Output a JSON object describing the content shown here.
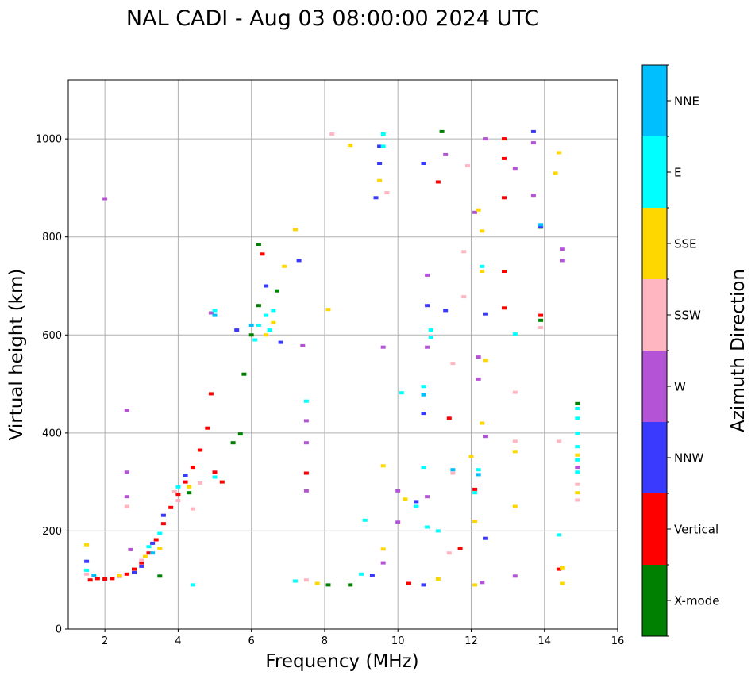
{
  "chart_data": {
    "type": "scatter",
    "title": "NAL CADI - Aug 03 08:00:00 2024 UTC",
    "xlabel": "Frequency (MHz)",
    "ylabel": "Virtual height (km)",
    "xlim": [
      1,
      16
    ],
    "ylim": [
      0,
      1120
    ],
    "xticks": [
      2,
      4,
      6,
      8,
      10,
      12,
      14,
      16
    ],
    "yticks": [
      0,
      200,
      400,
      600,
      800,
      1000
    ],
    "grid": true,
    "colorbar": {
      "label": "Azimuth Direction",
      "categories": [
        {
          "name": "X-mode",
          "color": "#008000"
        },
        {
          "name": "Vertical",
          "color": "#ff0000"
        },
        {
          "name": "NNW",
          "color": "#3a3aff"
        },
        {
          "name": "W",
          "color": "#b453d6"
        },
        {
          "name": "SSW",
          "color": "#ffb6c1"
        },
        {
          "name": "SSE",
          "color": "#ffd700"
        },
        {
          "name": "E",
          "color": "#00ffff"
        },
        {
          "name": "NNE",
          "color": "#00bfff"
        }
      ]
    },
    "series": [
      {
        "name": "Vertical",
        "points": [
          [
            1.6,
            100
          ],
          [
            1.8,
            103
          ],
          [
            2.0,
            102
          ],
          [
            2.2,
            103
          ],
          [
            2.4,
            108
          ],
          [
            2.6,
            112
          ],
          [
            2.8,
            122
          ],
          [
            3.0,
            135
          ],
          [
            3.2,
            155
          ],
          [
            3.4,
            182
          ],
          [
            3.6,
            215
          ],
          [
            3.8,
            248
          ],
          [
            4.0,
            275
          ],
          [
            4.2,
            300
          ],
          [
            4.4,
            330
          ],
          [
            4.6,
            365
          ],
          [
            4.8,
            410
          ],
          [
            4.9,
            480
          ],
          [
            5.0,
            320
          ],
          [
            6.3,
            765
          ],
          [
            12.9,
            1000
          ],
          [
            12.9,
            960
          ],
          [
            12.9,
            880
          ],
          [
            12.9,
            730
          ],
          [
            12.9,
            655
          ],
          [
            11.1,
            912
          ],
          [
            11.4,
            430
          ],
          [
            11.7,
            165
          ],
          [
            10.3,
            93
          ],
          [
            14.4,
            122
          ],
          [
            7.5,
            318
          ],
          [
            13.9,
            640
          ],
          [
            12.1,
            285
          ],
          [
            5.2,
            300
          ]
        ]
      },
      {
        "name": "X-mode",
        "points": [
          [
            3.5,
            108
          ],
          [
            5.5,
            380
          ],
          [
            5.8,
            520
          ],
          [
            6.0,
            600
          ],
          [
            6.2,
            660
          ],
          [
            6.2,
            785
          ],
          [
            6.7,
            690
          ],
          [
            8.1,
            90
          ],
          [
            8.7,
            90
          ],
          [
            13.9,
            820
          ],
          [
            13.9,
            630
          ],
          [
            11.2,
            1015
          ],
          [
            14.9,
            460
          ],
          [
            4.3,
            278
          ],
          [
            5.7,
            398
          ]
        ]
      },
      {
        "name": "NNW",
        "points": [
          [
            1.5,
            138
          ],
          [
            2.8,
            115
          ],
          [
            3.0,
            128
          ],
          [
            3.3,
            175
          ],
          [
            3.6,
            232
          ],
          [
            4.2,
            314
          ],
          [
            5.6,
            610
          ],
          [
            6.8,
            585
          ],
          [
            9.4,
            880
          ],
          [
            9.5,
            985
          ],
          [
            9.5,
            950
          ],
          [
            10.7,
            950
          ],
          [
            10.8,
            660
          ],
          [
            10.7,
            440
          ],
          [
            10.7,
            90
          ],
          [
            11.3,
            650
          ],
          [
            12.4,
            643
          ],
          [
            12.4,
            185
          ],
          [
            13.7,
            1015
          ],
          [
            13.9,
            822
          ],
          [
            9.3,
            110
          ],
          [
            6.4,
            700
          ],
          [
            7.3,
            752
          ],
          [
            10.5,
            260
          ]
        ]
      },
      {
        "name": "W",
        "points": [
          [
            2.0,
            878
          ],
          [
            2.6,
            446
          ],
          [
            2.6,
            320
          ],
          [
            2.6,
            270
          ],
          [
            2.7,
            162
          ],
          [
            4.9,
            645
          ],
          [
            7.5,
            425
          ],
          [
            7.5,
            380
          ],
          [
            7.5,
            282
          ],
          [
            7.4,
            578
          ],
          [
            9.6,
            575
          ],
          [
            9.6,
            135
          ],
          [
            10.0,
            282
          ],
          [
            10.0,
            218
          ],
          [
            10.8,
            575
          ],
          [
            10.8,
            722
          ],
          [
            10.8,
            270
          ],
          [
            11.3,
            968
          ],
          [
            12.1,
            850
          ],
          [
            12.2,
            555
          ],
          [
            12.2,
            510
          ],
          [
            12.4,
            1000
          ],
          [
            12.4,
            393
          ],
          [
            12.3,
            95
          ],
          [
            13.2,
            940
          ],
          [
            13.2,
            108
          ],
          [
            13.7,
            885
          ],
          [
            13.7,
            992
          ],
          [
            14.5,
            775
          ],
          [
            14.5,
            752
          ],
          [
            14.9,
            330
          ]
        ]
      },
      {
        "name": "SSW",
        "points": [
          [
            1.5,
            112
          ],
          [
            2.6,
            250
          ],
          [
            3.0,
            140
          ],
          [
            4.0,
            262
          ],
          [
            4.6,
            298
          ],
          [
            8.2,
            1010
          ],
          [
            9.7,
            890
          ],
          [
            11.5,
            542
          ],
          [
            11.8,
            770
          ],
          [
            11.9,
            945
          ],
          [
            11.8,
            678
          ],
          [
            13.2,
            483
          ],
          [
            13.2,
            383
          ],
          [
            13.9,
            615
          ],
          [
            14.4,
            383
          ],
          [
            14.9,
            263
          ],
          [
            14.9,
            295
          ],
          [
            7.5,
            100
          ],
          [
            11.4,
            155
          ],
          [
            11.5,
            318
          ],
          [
            4.4,
            245
          ],
          [
            3.9,
            280
          ]
        ]
      },
      {
        "name": "SSE",
        "points": [
          [
            1.5,
            172
          ],
          [
            2.4,
            110
          ],
          [
            3.1,
            148
          ],
          [
            3.5,
            165
          ],
          [
            4.3,
            290
          ],
          [
            6.4,
            600
          ],
          [
            6.6,
            625
          ],
          [
            7.2,
            815
          ],
          [
            7.8,
            93
          ],
          [
            8.1,
            652
          ],
          [
            8.7,
            987
          ],
          [
            9.5,
            915
          ],
          [
            9.6,
            333
          ],
          [
            9.6,
            163
          ],
          [
            10.2,
            265
          ],
          [
            11.1,
            102
          ],
          [
            12.0,
            352
          ],
          [
            12.1,
            220
          ],
          [
            12.2,
            855
          ],
          [
            12.3,
            812
          ],
          [
            12.3,
            420
          ],
          [
            12.3,
            730
          ],
          [
            12.4,
            548
          ],
          [
            12.1,
            90
          ],
          [
            13.2,
            362
          ],
          [
            13.2,
            250
          ],
          [
            14.4,
            972
          ],
          [
            14.3,
            930
          ],
          [
            14.5,
            93
          ],
          [
            14.5,
            125
          ],
          [
            14.9,
            278
          ],
          [
            14.9,
            355
          ],
          [
            6.9,
            740
          ]
        ]
      },
      {
        "name": "E",
        "points": [
          [
            1.5,
            120
          ],
          [
            3.2,
            168
          ],
          [
            3.5,
            195
          ],
          [
            4.0,
            290
          ],
          [
            4.4,
            90
          ],
          [
            5.0,
            310
          ],
          [
            6.1,
            590
          ],
          [
            6.2,
            620
          ],
          [
            6.4,
            640
          ],
          [
            6.6,
            650
          ],
          [
            7.2,
            98
          ],
          [
            7.5,
            465
          ],
          [
            9.1,
            222
          ],
          [
            9.6,
            1010
          ],
          [
            9.6,
            985
          ],
          [
            10.1,
            482
          ],
          [
            10.7,
            330
          ],
          [
            10.7,
            495
          ],
          [
            10.8,
            208
          ],
          [
            10.9,
            610
          ],
          [
            10.9,
            595
          ],
          [
            11.1,
            200
          ],
          [
            12.2,
            325
          ],
          [
            12.3,
            740
          ],
          [
            12.1,
            278
          ],
          [
            13.2,
            602
          ],
          [
            14.4,
            192
          ],
          [
            14.9,
            450
          ],
          [
            14.9,
            430
          ],
          [
            14.9,
            400
          ],
          [
            14.9,
            372
          ],
          [
            14.9,
            345
          ],
          [
            14.9,
            320
          ],
          [
            9.0,
            112
          ],
          [
            10.5,
            250
          ],
          [
            6.5,
            610
          ],
          [
            5.0,
            650
          ]
        ]
      },
      {
        "name": "NNE",
        "points": [
          [
            1.7,
            110
          ],
          [
            3.3,
            155
          ],
          [
            5.0,
            640
          ],
          [
            6.0,
            620
          ],
          [
            10.7,
            478
          ],
          [
            11.5,
            325
          ],
          [
            12.2,
            315
          ],
          [
            13.9,
            825
          ]
        ]
      }
    ]
  }
}
